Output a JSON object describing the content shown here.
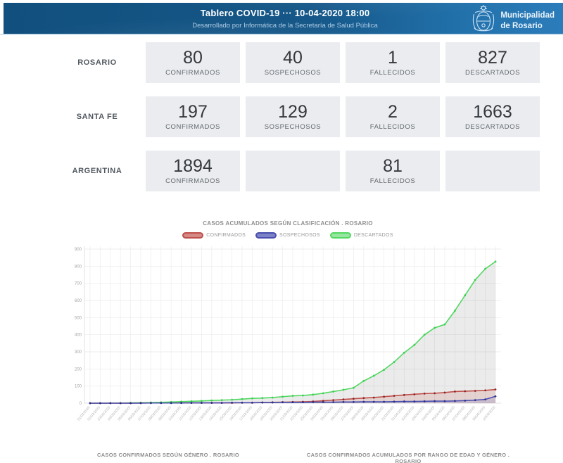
{
  "header": {
    "title": "Tablero COVID-19 ··· 10-04-2020 18:00",
    "subtitle": "Desarrollado por Informática de la Secretaría de Salud Pública",
    "org_line1": "Municipalidad",
    "org_line2": "de Rosario"
  },
  "stats": {
    "rows": [
      {
        "region": "ROSARIO",
        "cells": [
          {
            "value": "80",
            "label": "CONFIRMADOS"
          },
          {
            "value": "40",
            "label": "SOSPECHOSOS"
          },
          {
            "value": "1",
            "label": "FALLECIDOS"
          },
          {
            "value": "827",
            "label": "DESCARTADOS"
          }
        ]
      },
      {
        "region": "SANTA FE",
        "cells": [
          {
            "value": "197",
            "label": "CONFIRMADOS"
          },
          {
            "value": "129",
            "label": "SOSPECHOSOS"
          },
          {
            "value": "2",
            "label": "FALLECIDOS"
          },
          {
            "value": "1663",
            "label": "DESCARTADOS"
          }
        ]
      },
      {
        "region": "ARGENTINA",
        "cells": [
          {
            "value": "1894",
            "label": "CONFIRMADOS"
          },
          {
            "value": "",
            "label": ""
          },
          {
            "value": "81",
            "label": "FALLECIDOS"
          },
          {
            "value": "",
            "label": ""
          }
        ]
      }
    ]
  },
  "chart_data": {
    "type": "line",
    "title": "CASOS ACUMULADOS SEGÚN CLASIFICACIÓN . ROSARIO",
    "legend_position": "top",
    "grid": true,
    "ylim": [
      0,
      900
    ],
    "ytick_step": 100,
    "x": [
      "01/03/2020",
      "02/03/2020",
      "03/03/2020",
      "04/03/2020",
      "05/03/2020",
      "06/03/2020",
      "07/03/2020",
      "08/03/2020",
      "09/03/2020",
      "10/03/2020",
      "11/03/2020",
      "12/03/2020",
      "13/03/2020",
      "14/03/2020",
      "15/03/2020",
      "16/03/2020",
      "17/03/2020",
      "18/03/2020",
      "19/03/2020",
      "20/03/2020",
      "21/03/2020",
      "22/03/2020",
      "23/03/2020",
      "24/03/2020",
      "25/03/2020",
      "26/03/2020",
      "27/03/2020",
      "28/03/2020",
      "29/03/2020",
      "30/03/2020",
      "31/03/2020",
      "01/04/2020",
      "02/04/2020",
      "03/04/2020",
      "04/04/2020",
      "05/04/2020",
      "06/04/2020",
      "07/04/2020",
      "08/04/2020",
      "09/04/2020",
      "10/04/2020"
    ],
    "series": [
      {
        "name": "CONFIRMADOS",
        "color": "#bf4f4b",
        "point_color": "#8e2723",
        "area_fill": "rgba(191,79,75,0.16)",
        "legend_fill": "#d58985",
        "values": [
          0,
          0,
          0,
          0,
          0,
          1,
          1,
          1,
          1,
          2,
          2,
          2,
          2,
          2,
          2,
          3,
          3,
          4,
          5,
          6,
          7,
          8,
          10,
          14,
          18,
          22,
          26,
          30,
          33,
          38,
          43,
          48,
          52,
          56,
          58,
          62,
          68,
          70,
          72,
          75,
          80
        ]
      },
      {
        "name": "SOSPECHOSOS",
        "color": "#4a4fae",
        "point_color": "#2d3291",
        "area_fill": "rgba(74,79,174,0.16)",
        "legend_fill": "#7d81c7",
        "values": [
          0,
          0,
          0,
          0,
          0,
          0,
          1,
          1,
          1,
          1,
          2,
          2,
          2,
          2,
          3,
          3,
          3,
          4,
          4,
          5,
          5,
          5,
          6,
          6,
          6,
          7,
          7,
          8,
          8,
          8,
          9,
          10,
          10,
          11,
          12,
          12,
          13,
          15,
          18,
          22,
          40
        ]
      },
      {
        "name": "DESCARTADOS",
        "color": "#53d862",
        "point_color": "#3ecf52",
        "area_fill": "rgba(0,0,0,0.08)",
        "legend_fill": "#97e5a0",
        "values": [
          0,
          0,
          1,
          1,
          2,
          3,
          4,
          5,
          7,
          9,
          11,
          13,
          16,
          18,
          20,
          24,
          28,
          30,
          33,
          38,
          43,
          45,
          50,
          58,
          68,
          78,
          90,
          130,
          160,
          195,
          240,
          295,
          340,
          400,
          440,
          460,
          540,
          630,
          720,
          785,
          827
        ]
      }
    ]
  },
  "footer_titles": {
    "left": "CASOS CONFIRMADOS SEGÚN GÉNERO . ROSARIO",
    "right": "CASOS CONFIRMADOS ACUMULADOS POR RANGO DE EDAD Y GÉNERO . ROSARIO"
  }
}
